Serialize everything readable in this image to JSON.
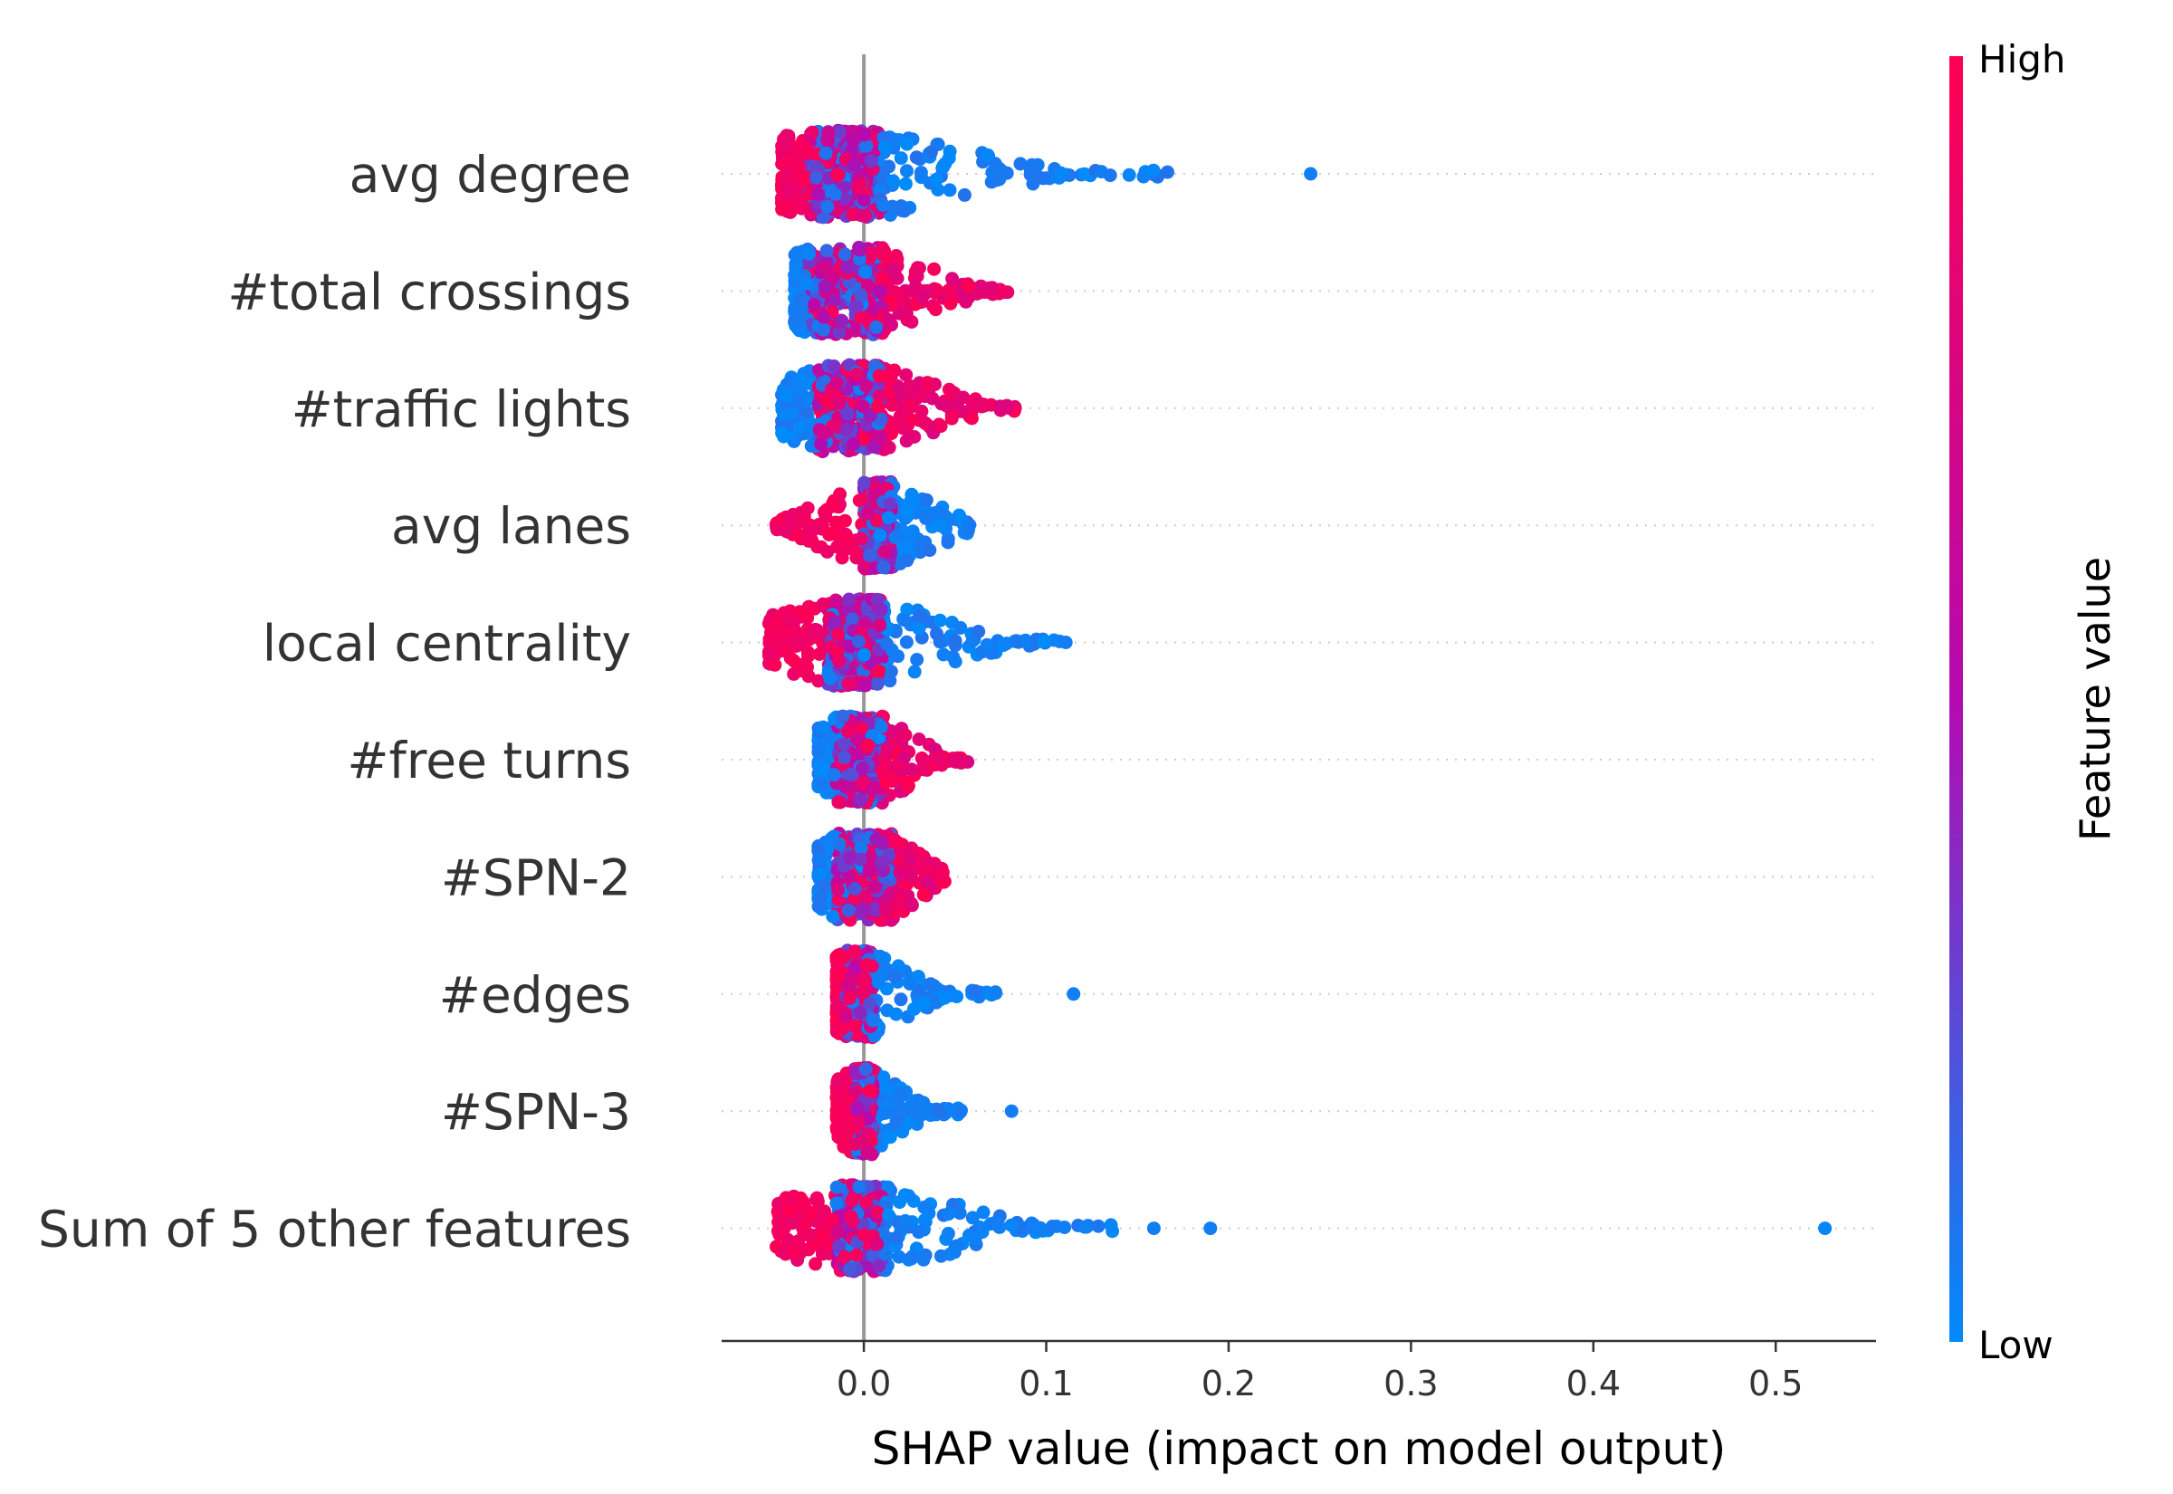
{
  "chart_data": {
    "type": "scatter",
    "subtype": "shap-beeswarm",
    "xlabel": "SHAP value (impact on model output)",
    "ylabel": "",
    "xlim": [
      -0.078,
      0.555
    ],
    "xticks": [
      0.0,
      0.1,
      0.2,
      0.3,
      0.4,
      0.5
    ],
    "xtick_labels": [
      "0.0",
      "0.1",
      "0.2",
      "0.3",
      "0.4",
      "0.5"
    ],
    "grid": "dotted horizontal lines per feature",
    "zero_line": true,
    "colors": {
      "low": "#008bfb",
      "high": "#ff0052",
      "mid": "#b40ab0",
      "zero_line": "#999999",
      "grid": "#cccccc"
    },
    "colorbar": {
      "label": "Feature value",
      "high_label": "High",
      "low_label": "Low"
    },
    "features": [
      {
        "name": "avg degree",
        "range": [
          -0.045,
          0.173
        ],
        "outliers": [
          0.245
        ],
        "core": [
          -0.03,
          0.01
        ],
        "tail_color": "low"
      },
      {
        "name": "#total crossings",
        "range": [
          -0.038,
          0.085
        ],
        "outliers": [],
        "core": [
          -0.03,
          0.01
        ],
        "tail_color": "high"
      },
      {
        "name": "#traffic lights",
        "range": [
          -0.045,
          0.085
        ],
        "outliers": [],
        "core": [
          -0.025,
          0.01
        ],
        "tail_color": "high"
      },
      {
        "name": "avg lanes",
        "range": [
          -0.048,
          0.058
        ],
        "outliers": [],
        "core": [
          0.0,
          0.015
        ],
        "tail_color": "low"
      },
      {
        "name": "local centrality",
        "range": [
          -0.052,
          0.113
        ],
        "outliers": [],
        "core": [
          -0.02,
          0.01
        ],
        "tail_color": "low"
      },
      {
        "name": "#free turns",
        "range": [
          -0.025,
          0.058
        ],
        "outliers": [],
        "core": [
          -0.015,
          0.01
        ],
        "tail_color": "high"
      },
      {
        "name": "#SPN-2",
        "range": [
          -0.025,
          0.045
        ],
        "outliers": [],
        "core": [
          -0.015,
          0.015
        ],
        "tail_color": "high"
      },
      {
        "name": "#edges",
        "range": [
          -0.015,
          0.073
        ],
        "outliers": [
          0.115
        ],
        "core": [
          -0.01,
          0.005
        ],
        "tail_color": "low"
      },
      {
        "name": "#SPN-3",
        "range": [
          -0.015,
          0.055
        ],
        "outliers": [
          0.081
        ],
        "core": [
          -0.005,
          0.005
        ],
        "tail_color": "low"
      },
      {
        "name": "Sum of 5 other features",
        "range": [
          -0.048,
          0.138
        ],
        "outliers": [
          0.159,
          0.19,
          0.527
        ],
        "core": [
          -0.015,
          0.01
        ],
        "tail_color": "low"
      }
    ]
  }
}
